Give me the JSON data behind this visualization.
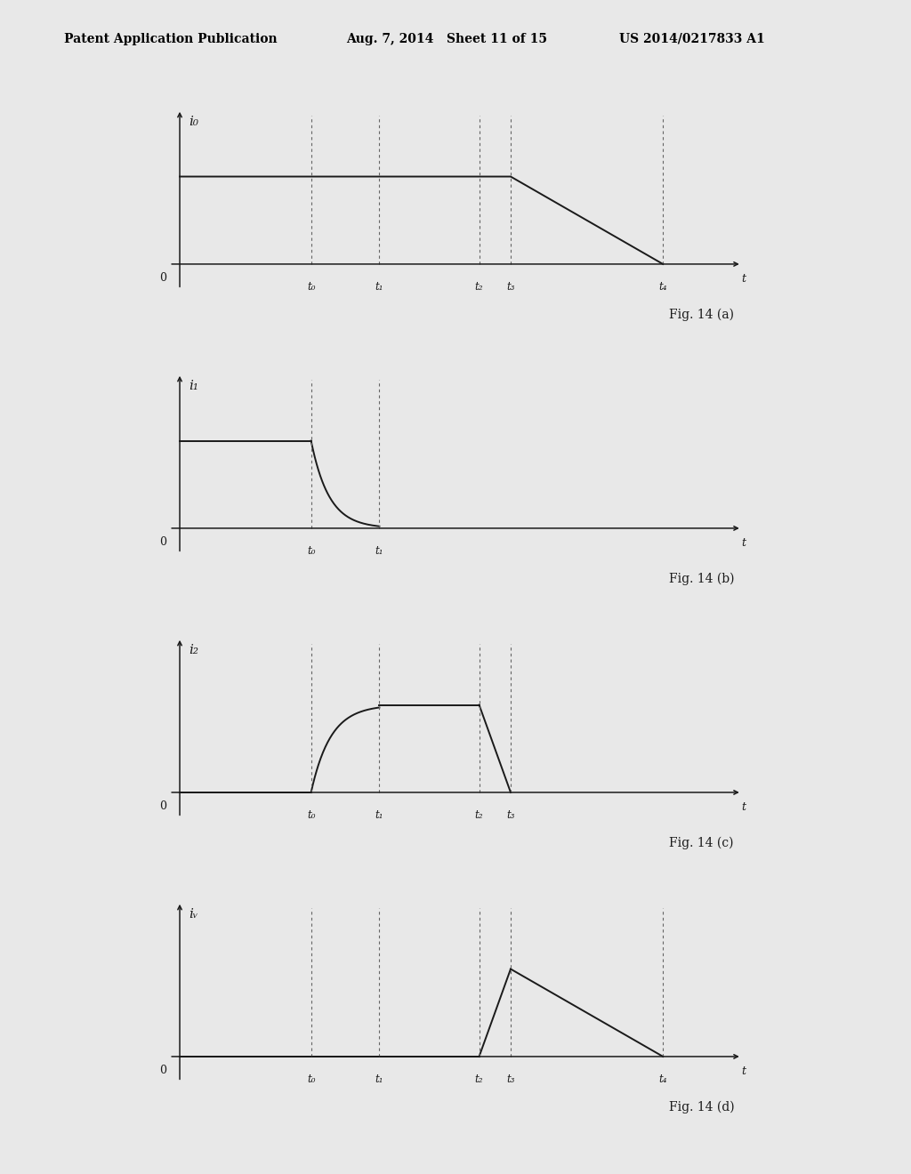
{
  "header_left": "Patent Application Publication",
  "header_mid": "Aug. 7, 2014   Sheet 11 of 15",
  "header_right": "US 2014/0217833 A1",
  "fig_labels": [
    "Fig. 14 (a)",
    "Fig. 14 (b)",
    "Fig. 14 (c)",
    "Fig. 14 (d)"
  ],
  "y_labels": [
    "i₀",
    "i₁",
    "i₂",
    "iᵥ"
  ],
  "time_points": {
    "t0": 0.25,
    "t1": 0.38,
    "t2": 0.57,
    "t3": 0.63,
    "t4": 0.92
  },
  "flat_level": 0.52,
  "line_color": "#1a1a1a",
  "dash_color": "#666666",
  "bg_color": "#e8e8e8",
  "fontsize_header": 10,
  "fontsize_label": 10,
  "fontsize_tick": 9,
  "fontsize_fig": 10
}
